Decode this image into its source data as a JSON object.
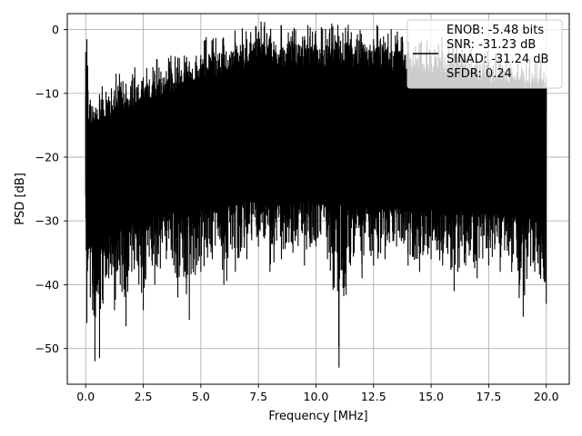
{
  "chart_data": {
    "type": "line",
    "title": "",
    "xlabel": "Frequency [MHz]",
    "ylabel": "PSD [dB]",
    "xlim": [
      -0.8,
      21.0
    ],
    "ylim": [
      -55.6,
      2.5
    ],
    "x_ticks": [
      0.0,
      2.5,
      5.0,
      7.5,
      10.0,
      12.5,
      15.0,
      17.5,
      20.0
    ],
    "x_tick_labels": [
      "0.0",
      "2.5",
      "5.0",
      "7.5",
      "10.0",
      "12.5",
      "15.0",
      "17.5",
      "20.0"
    ],
    "y_ticks": [
      0,
      -10,
      -20,
      -30,
      -40,
      -50
    ],
    "y_tick_labels": [
      "0",
      "−10",
      "−20",
      "−30",
      "−40",
      "−50"
    ],
    "grid": true,
    "legend_position": "top-right",
    "line_color": "#000000",
    "series": [
      {
        "name": "ENOB: -5.48 bits\nSNR: -31.23 dB\nSINAD: -31.24 dB\nSFDR: 0.24",
        "x": [
          0.0,
          0.05,
          0.1,
          0.2,
          0.3,
          0.4,
          0.5,
          0.6,
          0.75,
          1.0,
          1.25,
          1.5,
          1.75,
          2.0,
          2.5,
          3.0,
          3.5,
          4.0,
          4.5,
          5.0,
          5.5,
          6.0,
          6.5,
          7.0,
          7.5,
          8.0,
          8.5,
          9.0,
          9.5,
          10.0,
          10.5,
          11.0,
          11.5,
          12.0,
          12.5,
          13.0,
          13.5,
          14.0,
          14.5,
          15.0,
          15.5,
          16.0,
          16.5,
          17.0,
          17.5,
          18.0,
          18.5,
          19.0,
          19.5,
          20.0
        ],
        "upper": [
          -3.5,
          -1.5,
          -9.5,
          -11.0,
          -12.0,
          -13.0,
          -12.5,
          -11.5,
          -11.0,
          -10.5,
          -9.5,
          -9.0,
          -8.5,
          -8.0,
          -7.5,
          -7.0,
          -6.5,
          -6.0,
          -5.0,
          -4.0,
          -3.0,
          -2.5,
          -2.0,
          -1.5,
          -0.5,
          -1.0,
          -1.5,
          -2.0,
          -1.0,
          -2.0,
          -1.5,
          -1.0,
          -1.5,
          -2.0,
          -1.5,
          -2.0,
          -2.5,
          -3.0,
          -3.5,
          -4.0,
          -3.5,
          -4.0,
          -4.5,
          -5.0,
          -5.0,
          -5.5,
          -6.0,
          -6.5,
          -7.0,
          -7.5
        ],
        "lower": [
          -26.0,
          -46.0,
          -36.0,
          -42.0,
          -44.0,
          -52.0,
          -40.0,
          -51.5,
          -43.0,
          -39.0,
          -44.0,
          -40.0,
          -46.5,
          -38.0,
          -44.0,
          -40.0,
          -36.0,
          -42.0,
          -45.5,
          -38.0,
          -36.0,
          -40.0,
          -38.0,
          -36.0,
          -34.0,
          -38.0,
          -36.0,
          -35.0,
          -37.0,
          -34.0,
          -36.0,
          -53.0,
          -37.0,
          -39.0,
          -37.0,
          -36.0,
          -34.0,
          -37.0,
          -38.0,
          -36.0,
          -37.0,
          -41.0,
          -37.0,
          -39.0,
          -37.0,
          -38.0,
          -38.0,
          -45.0,
          -38.0,
          -43.0
        ],
        "band_top": [
          -12.0,
          -14.0,
          -16.0,
          -15.0,
          -15.5,
          -16.0,
          -15.0,
          -15.0,
          -14.5,
          -14.0,
          -13.5,
          -13.0,
          -12.5,
          -12.0,
          -11.5,
          -11.0,
          -10.5,
          -10.0,
          -9.0,
          -8.0,
          -7.5,
          -7.0,
          -6.5,
          -6.0,
          -5.5,
          -5.5,
          -6.0,
          -6.0,
          -5.5,
          -6.0,
          -6.0,
          -5.5,
          -6.0,
          -6.0,
          -6.0,
          -6.5,
          -6.5,
          -7.0,
          -7.0,
          -7.5,
          -7.5,
          -8.0,
          -8.0,
          -8.5,
          -8.5,
          -9.0,
          -9.0,
          -9.5,
          -10.0,
          -10.0
        ],
        "band_bottom": [
          -30.0,
          -34.0,
          -33.0,
          -34.0,
          -34.0,
          -35.0,
          -33.0,
          -34.0,
          -33.0,
          -32.0,
          -32.0,
          -31.5,
          -31.0,
          -30.5,
          -30.0,
          -29.5,
          -29.0,
          -28.5,
          -28.5,
          -28.0,
          -28.0,
          -27.5,
          -27.5,
          -27.0,
          -27.0,
          -27.5,
          -27.5,
          -27.0,
          -27.0,
          -27.0,
          -27.5,
          -27.5,
          -28.0,
          -28.0,
          -28.0,
          -28.0,
          -28.0,
          -28.0,
          -28.5,
          -28.0,
          -28.0,
          -28.5,
          -28.5,
          -29.0,
          -28.5,
          -29.0,
          -29.0,
          -29.5,
          -29.5,
          -29.0
        ]
      }
    ]
  }
}
